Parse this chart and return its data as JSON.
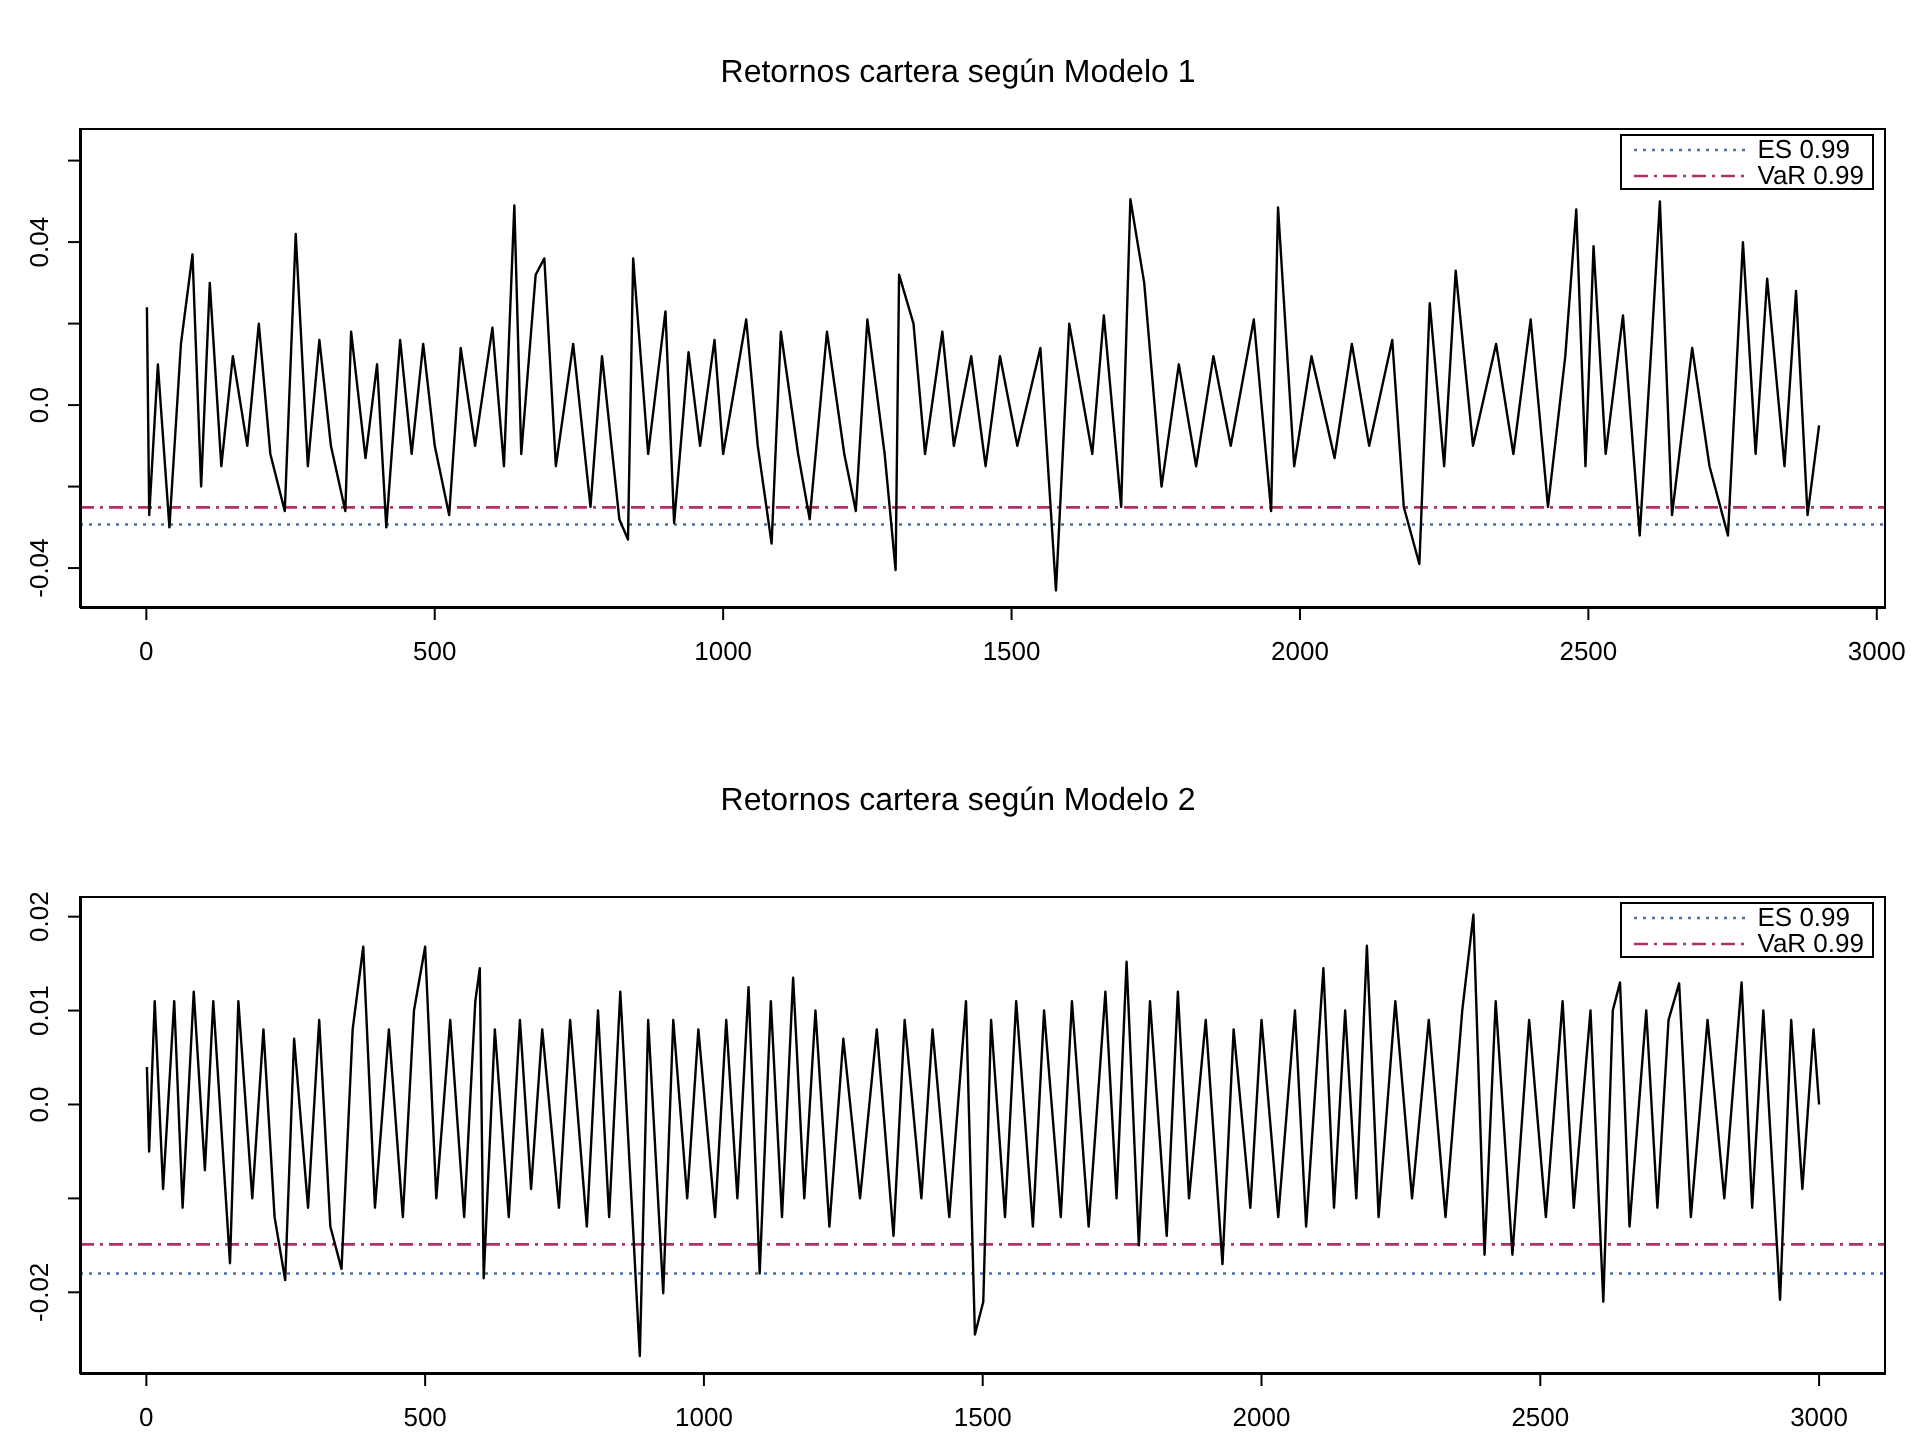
{
  "chart_data": [
    {
      "type": "line",
      "title": "Retornos cartera según Modelo 1",
      "xlim": [
        -115,
        3016
      ],
      "xticks": [
        0,
        500,
        1000,
        1500,
        2000,
        2500,
        3000
      ],
      "ylim": [
        -0.0498,
        0.068
      ],
      "yticks": [
        {
          "value": -0.04,
          "label": "-0.04"
        },
        {
          "value": -0.02,
          "label": null
        },
        {
          "value": 0,
          "label": "0.0"
        },
        {
          "value": 0.02,
          "label": null
        },
        {
          "value": 0.04,
          "label": "0.04"
        },
        {
          "value": 0.06,
          "label": null
        }
      ],
      "grid": false,
      "legend": "top right",
      "marker": "none",
      "series": [
        {
          "color": "#000000",
          "x": [
            1,
            5,
            20,
            40,
            60,
            80,
            95,
            110,
            130,
            150,
            175,
            195,
            215,
            240,
            259,
            280,
            300,
            320,
            345,
            355,
            380,
            400,
            416,
            440,
            460,
            480,
            500,
            525,
            545,
            570,
            600,
            620,
            638,
            650,
            675,
            690,
            710,
            740,
            770,
            790,
            820,
            835,
            844,
            870,
            900,
            915,
            940,
            960,
            985,
            1000,
            1040,
            1060,
            1084,
            1100,
            1130,
            1150,
            1180,
            1210,
            1230,
            1250,
            1280,
            1299,
            1305,
            1330,
            1350,
            1380,
            1400,
            1430,
            1455,
            1480,
            1510,
            1550,
            1577,
            1600,
            1640,
            1660,
            1690,
            1706,
            1730,
            1760,
            1790,
            1820,
            1850,
            1880,
            1920,
            1950,
            1962,
            1990,
            2020,
            2060,
            2090,
            2120,
            2160,
            2180,
            2207,
            2225,
            2250,
            2270,
            2300,
            2340,
            2370,
            2400,
            2430,
            2460,
            2479,
            2495,
            2509,
            2530,
            2560,
            2589,
            2610,
            2624,
            2645,
            2680,
            2710,
            2742,
            2768,
            2790,
            2810,
            2840,
            2860,
            2880,
            2900
          ],
          "values": [
            0.024,
            -0.027,
            0.01,
            -0.03,
            0.015,
            0.037,
            -0.02,
            0.03,
            -0.015,
            0.012,
            -0.01,
            0.02,
            -0.012,
            -0.026,
            0.042,
            -0.015,
            0.016,
            -0.01,
            -0.026,
            0.018,
            -0.013,
            0.01,
            -0.03,
            0.016,
            -0.012,
            0.015,
            -0.01,
            -0.027,
            0.014,
            -0.01,
            0.019,
            -0.015,
            0.049,
            -0.012,
            0.032,
            0.036,
            -0.015,
            0.015,
            -0.025,
            0.012,
            -0.028,
            -0.033,
            0.036,
            -0.012,
            0.023,
            -0.029,
            0.013,
            -0.01,
            0.016,
            -0.012,
            0.021,
            -0.01,
            -0.034,
            0.018,
            -0.012,
            -0.028,
            0.018,
            -0.012,
            -0.026,
            0.021,
            -0.012,
            -0.0405,
            0.032,
            0.02,
            -0.012,
            0.018,
            -0.01,
            0.012,
            -0.015,
            0.012,
            -0.01,
            0.014,
            -0.0455,
            0.02,
            -0.012,
            0.022,
            -0.025,
            0.0505,
            0.03,
            -0.02,
            0.01,
            -0.015,
            0.012,
            -0.01,
            0.021,
            -0.026,
            0.0485,
            -0.015,
            0.012,
            -0.013,
            0.015,
            -0.01,
            0.016,
            -0.025,
            -0.039,
            0.025,
            -0.015,
            0.033,
            -0.01,
            0.015,
            -0.012,
            0.021,
            -0.025,
            0.012,
            0.048,
            -0.015,
            0.039,
            -0.012,
            0.022,
            -0.032,
            0.016,
            0.05,
            -0.027,
            0.014,
            -0.015,
            -0.032,
            0.04,
            -0.012,
            0.031,
            -0.015,
            0.028,
            -0.027,
            -0.005
          ]
        }
      ],
      "ref_lines": [
        {
          "axis": "y",
          "value": -0.0293,
          "label": "ES 0.99",
          "color": "#4a6fa0",
          "line_style": "dotted"
        },
        {
          "axis": "y",
          "value": -0.0251,
          "label": "VaR 0.99",
          "color": "#b0306a",
          "line_style": "dashed"
        }
      ]
    },
    {
      "type": "line",
      "title": "Retornos cartera según Modelo 2",
      "xlim": [
        -119,
        3120
      ],
      "xticks": [
        0,
        500,
        1000,
        1500,
        2000,
        2500,
        3000
      ],
      "ylim": [
        -0.0287,
        0.0222
      ],
      "yticks": [
        {
          "value": -0.02,
          "label": "-0.02"
        },
        {
          "value": -0.01,
          "label": null
        },
        {
          "value": 0,
          "label": "0.0"
        },
        {
          "value": 0.01,
          "label": "0.01"
        },
        {
          "value": 0.02,
          "label": "0.02"
        }
      ],
      "grid": false,
      "legend": "top right",
      "marker": "none",
      "series": [
        {
          "color": "#000000",
          "x": [
            1,
            5,
            15,
            30,
            50,
            65,
            85,
            105,
            120,
            150,
            165,
            190,
            210,
            230,
            249,
            265,
            290,
            310,
            330,
            350,
            370,
            389,
            410,
            435,
            460,
            480,
            500,
            520,
            545,
            570,
            590,
            598,
            605,
            625,
            650,
            670,
            690,
            710,
            740,
            760,
            790,
            810,
            830,
            850,
            870,
            885,
            900,
            927,
            945,
            970,
            990,
            1020,
            1040,
            1060,
            1080,
            1100,
            1120,
            1140,
            1160,
            1180,
            1200,
            1225,
            1250,
            1280,
            1310,
            1340,
            1360,
            1390,
            1410,
            1440,
            1470,
            1486,
            1501,
            1515,
            1540,
            1560,
            1590,
            1610,
            1640,
            1660,
            1690,
            1720,
            1740,
            1758,
            1780,
            1800,
            1830,
            1850,
            1870,
            1900,
            1930,
            1950,
            1980,
            2000,
            2030,
            2060,
            2080,
            2111,
            2130,
            2150,
            2170,
            2189,
            2210,
            2240,
            2270,
            2300,
            2330,
            2360,
            2380,
            2400,
            2420,
            2450,
            2480,
            2510,
            2540,
            2560,
            2590,
            2613,
            2630,
            2643,
            2660,
            2690,
            2710,
            2730,
            2749,
            2770,
            2800,
            2830,
            2861,
            2880,
            2900,
            2930,
            2950,
            2970,
            2990,
            3000
          ],
          "values": [
            0.004,
            -0.005,
            0.011,
            -0.009,
            0.011,
            -0.011,
            0.012,
            -0.007,
            0.011,
            -0.0169,
            0.011,
            -0.01,
            0.008,
            -0.012,
            -0.0187,
            0.007,
            -0.011,
            0.009,
            -0.013,
            -0.0175,
            0.008,
            0.0168,
            -0.011,
            0.008,
            -0.012,
            0.01,
            0.0168,
            -0.01,
            0.009,
            -0.012,
            0.011,
            0.0145,
            -0.0185,
            0.008,
            -0.012,
            0.009,
            -0.009,
            0.008,
            -0.011,
            0.009,
            -0.013,
            0.01,
            -0.012,
            0.012,
            -0.01,
            -0.0268,
            0.009,
            -0.0201,
            0.009,
            -0.01,
            0.008,
            -0.012,
            0.009,
            -0.01,
            0.0125,
            -0.018,
            0.011,
            -0.012,
            0.0135,
            -0.01,
            0.01,
            -0.013,
            0.007,
            -0.01,
            0.008,
            -0.014,
            0.009,
            -0.01,
            0.008,
            -0.012,
            0.011,
            -0.0245,
            -0.021,
            0.009,
            -0.012,
            0.011,
            -0.013,
            0.01,
            -0.012,
            0.011,
            -0.013,
            0.012,
            -0.01,
            0.0152,
            -0.015,
            0.011,
            -0.014,
            0.012,
            -0.01,
            0.009,
            -0.017,
            0.008,
            -0.011,
            0.009,
            -0.012,
            0.01,
            -0.013,
            0.0145,
            -0.011,
            0.01,
            -0.01,
            0.0169,
            -0.012,
            0.011,
            -0.01,
            0.009,
            -0.012,
            0.01,
            0.0202,
            -0.016,
            0.011,
            -0.016,
            0.009,
            -0.012,
            0.011,
            -0.011,
            0.01,
            -0.021,
            0.01,
            0.013,
            -0.013,
            0.01,
            -0.011,
            0.009,
            0.0129,
            -0.012,
            0.009,
            -0.01,
            0.013,
            -0.011,
            0.01,
            -0.0208,
            0.009,
            -0.009,
            0.008,
            0
          ]
        }
      ],
      "ref_lines": [
        {
          "axis": "y",
          "value": -0.018,
          "label": "ES 0.99",
          "color": "#4a6fa0",
          "line_style": "dotted"
        },
        {
          "axis": "y",
          "value": -0.0149,
          "label": "VaR 0.99",
          "color": "#b0306a",
          "line_style": "dashed"
        }
      ]
    }
  ]
}
